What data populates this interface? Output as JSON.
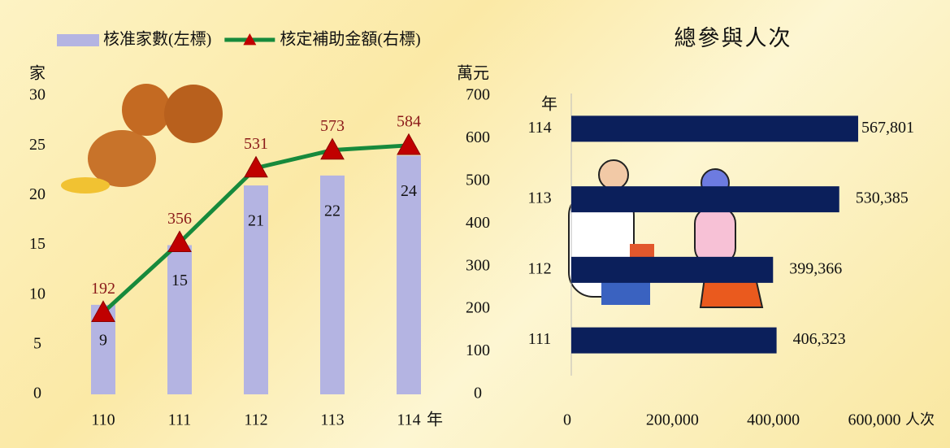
{
  "chart_data": [
    {
      "type": "combo",
      "categories": [
        "110",
        "111",
        "112",
        "113",
        "114"
      ],
      "xlabel": "年",
      "ylabel": "家",
      "y2label": "萬元",
      "series": [
        {
          "name": "核准家數(左標)",
          "type": "bar",
          "color": "#b4b4e2",
          "values": [
            9,
            15,
            21,
            22,
            24
          ]
        },
        {
          "name": "核定補助金額(右標)",
          "type": "line",
          "axis": "y2",
          "color": "#178a3c",
          "marker_color": "#c00000",
          "label_color": "#8b1a1a",
          "values": [
            192,
            356,
            531,
            573,
            584
          ]
        }
      ],
      "ylim": [
        0,
        30
      ],
      "yticks": [
        0,
        5,
        10,
        15,
        20,
        25,
        30
      ],
      "y2lim": [
        0,
        700
      ],
      "y2ticks": [
        0,
        100,
        200,
        300,
        400,
        500,
        600,
        700
      ],
      "legend": "top"
    },
    {
      "type": "barh",
      "title": "總參與人次",
      "categories": [
        "114",
        "113",
        "112",
        "111"
      ],
      "values": [
        567801,
        530385,
        399366,
        406323
      ],
      "value_labels": [
        "567,801",
        "530,385",
        "399,366",
        "406,323"
      ],
      "color": "#0b1f5b",
      "ylabel": "年",
      "xlabel": "人次",
      "xlim": [
        0,
        600000
      ],
      "xticks": [
        0,
        {
          "value": 200000,
          "label": "200,000"
        },
        {
          "value": 400000,
          "label": "400,000"
        },
        {
          "value": 600000,
          "label": "600,000"
        }
      ]
    }
  ]
}
